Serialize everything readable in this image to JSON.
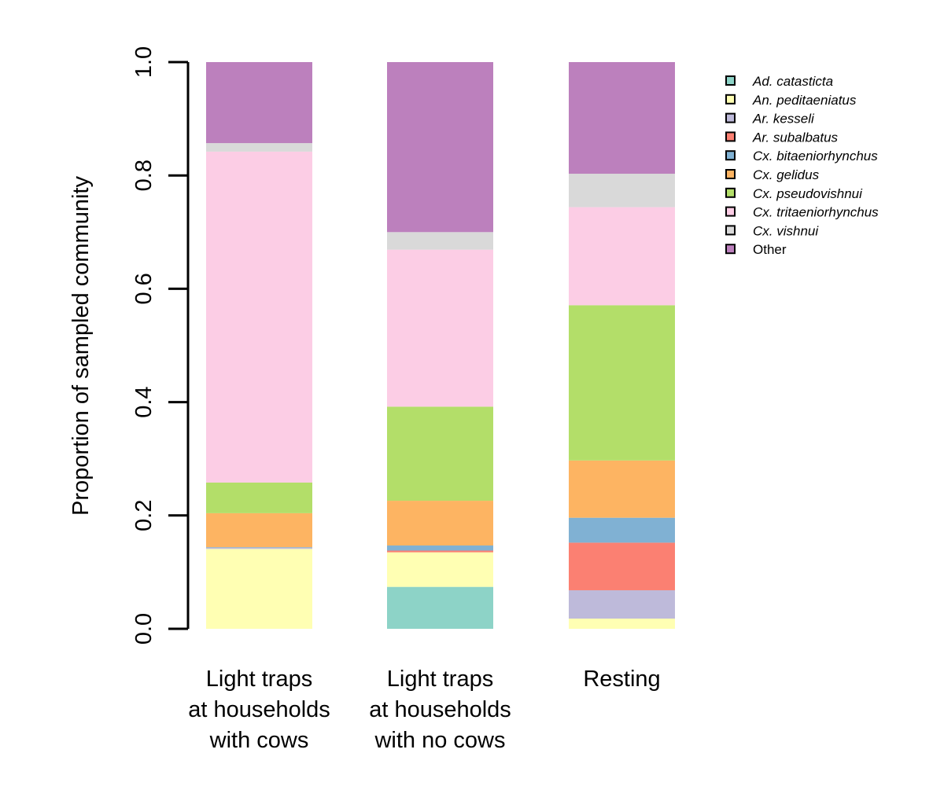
{
  "chart_data": {
    "type": "bar",
    "stacked": true,
    "title": "",
    "xlabel": "",
    "ylabel": "Proportion of sampled community",
    "ylim": [
      0,
      1
    ],
    "yticks": [
      "0.0",
      "0.2",
      "0.4",
      "0.6",
      "0.8",
      "1.0"
    ],
    "grid": false,
    "legend_position": "right",
    "categories": [
      [
        "Light traps",
        "at households",
        "with cows"
      ],
      [
        "Light traps",
        "at households",
        "with no cows"
      ],
      [
        "Resting"
      ]
    ],
    "series": [
      {
        "name": "Ad. catasticta",
        "italic": true,
        "color": "#8DD3C7",
        "values": [
          0.0,
          0.074,
          0.0
        ]
      },
      {
        "name": "An. peditaeniatus",
        "italic": true,
        "color": "#FFFFB3",
        "values": [
          0.141,
          0.061,
          0.018
        ]
      },
      {
        "name": "Ar. kesseli",
        "italic": true,
        "color": "#BEBADA",
        "values": [
          0.002,
          0.0,
          0.05
        ]
      },
      {
        "name": "Ar. subalbatus",
        "italic": true,
        "color": "#FB8072",
        "values": [
          0.0,
          0.003,
          0.084
        ]
      },
      {
        "name": "Cx. bitaeniorhynchus",
        "italic": true,
        "color": "#80B1D3",
        "values": [
          0.001,
          0.009,
          0.044
        ]
      },
      {
        "name": "Cx. gelidus",
        "italic": true,
        "color": "#FDB462",
        "values": [
          0.06,
          0.079,
          0.101
        ]
      },
      {
        "name": "Cx. pseudovishnui",
        "italic": true,
        "color": "#B3DE69",
        "values": [
          0.054,
          0.166,
          0.274
        ]
      },
      {
        "name": "Cx. tritaeniorhynchus",
        "italic": true,
        "color": "#FCCDE5",
        "values": [
          0.584,
          0.277,
          0.173
        ]
      },
      {
        "name": "Cx. vishnui",
        "italic": true,
        "color": "#D9D9D9",
        "values": [
          0.015,
          0.031,
          0.059
        ]
      },
      {
        "name": "Other",
        "italic": false,
        "color": "#BC80BD",
        "values": [
          0.143,
          0.3,
          0.197
        ]
      }
    ]
  }
}
